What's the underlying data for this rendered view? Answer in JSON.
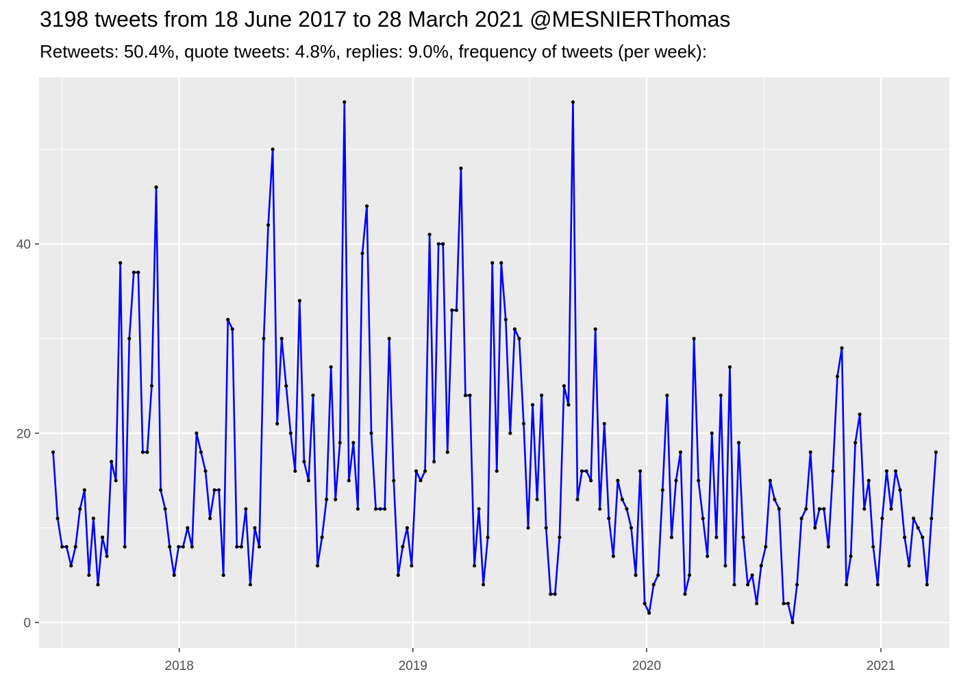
{
  "title": "3198 tweets from 18 June 2017 to 28 March 2021 @MESNIERThomas",
  "subtitle": "Retweets: 50.4%, quote tweets: 4.8%, replies: 9.0%, frequency of tweets (per week):",
  "chart_data": {
    "type": "line",
    "title": "3198 tweets from 18 June 2017 to 28 March 2021 @MESNIERThomas",
    "subtitle": "Retweets: 50.4%, quote tweets: 4.8%, replies: 9.0%, frequency of tweets (per week):",
    "xlabel": "",
    "ylabel": "",
    "x_start": "2017-06-18",
    "x_end": "2021-03-28",
    "x_step": "1 week",
    "xlim": [
      "2017-05-27",
      "2021-04-18"
    ],
    "ylim": [
      -2.7,
      57.6
    ],
    "x_ticks": [
      "2018",
      "2019",
      "2020",
      "2021"
    ],
    "y_ticks": [
      0,
      20,
      40
    ],
    "grid": true,
    "line_color": "#0000ff",
    "point_color": "#000000",
    "background": "#ebebeb",
    "series": [
      {
        "values": [
          18,
          11,
          8,
          8,
          6,
          8,
          12,
          14,
          5,
          11,
          4,
          9,
          7,
          17,
          15,
          38,
          8,
          30,
          37,
          37,
          18,
          18,
          25,
          46,
          14,
          12,
          8,
          5,
          8,
          8,
          10,
          8,
          20,
          18,
          16,
          11,
          14,
          14,
          5,
          32,
          31,
          8,
          8,
          12,
          4,
          10,
          8,
          30,
          42,
          50,
          21,
          30,
          25,
          20,
          16,
          34,
          17,
          15,
          24,
          6,
          9,
          13,
          27,
          13,
          19,
          55,
          15,
          19,
          12,
          39,
          44,
          20,
          12,
          12,
          12,
          30,
          15,
          5,
          8,
          10,
          6,
          16,
          15,
          16,
          41,
          17,
          40,
          40,
          18,
          33,
          33,
          48,
          24,
          24,
          6,
          12,
          4,
          9,
          38,
          16,
          38,
          32,
          20,
          31,
          30,
          21,
          10,
          23,
          13,
          24,
          10,
          3,
          3,
          9,
          25,
          23,
          55,
          13,
          16,
          16,
          15,
          31,
          12,
          21,
          11,
          7,
          15,
          13,
          12,
          10,
          5,
          16,
          2,
          1,
          4,
          5,
          14,
          24,
          9,
          15,
          18,
          3,
          5,
          30,
          15,
          11,
          7,
          20,
          9,
          24,
          6,
          27,
          4,
          19,
          9,
          4,
          5,
          2,
          6,
          8,
          15,
          13,
          12,
          2,
          2,
          0,
          4,
          11,
          12,
          18,
          10,
          12,
          12,
          8,
          16,
          26,
          29,
          4,
          7,
          19,
          22,
          12,
          15,
          8,
          4,
          11,
          16,
          12,
          16,
          14,
          9,
          6,
          11,
          10,
          9,
          4,
          11,
          18
        ]
      }
    ]
  }
}
